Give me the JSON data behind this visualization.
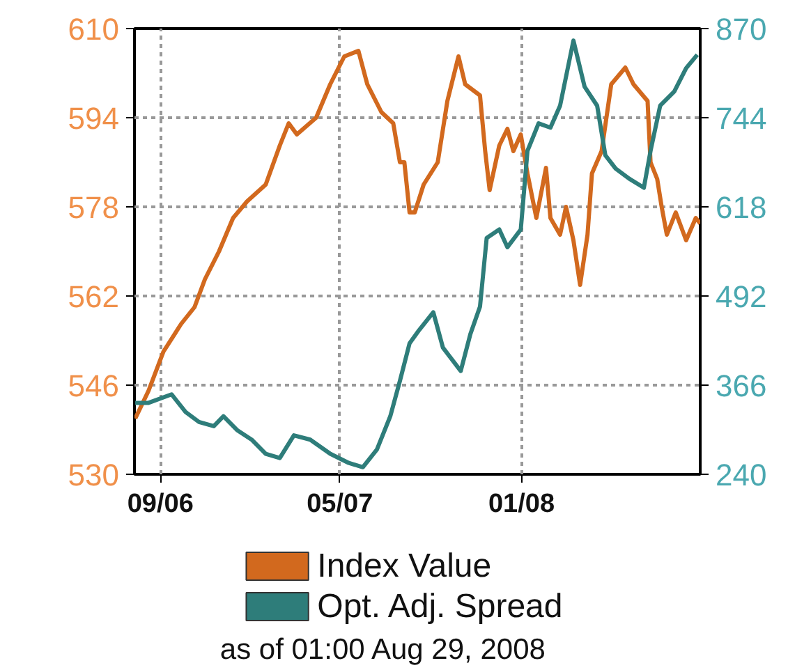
{
  "chart_data": {
    "type": "line",
    "annotations": [
      "as of 01:00 Aug 29, 2008"
    ],
    "xlim": [
      "2006-07-28",
      "2008-08-29"
    ],
    "xticks": [
      {
        "value": "2006-09-01",
        "label": "09/06"
      },
      {
        "value": "2007-05-01",
        "label": "05/07"
      },
      {
        "value": "2008-01-01",
        "label": "01/08"
      }
    ],
    "ylim": [
      530,
      610
    ],
    "yticks": [
      530,
      546,
      562,
      578,
      594,
      610
    ],
    "y2lim": [
      240,
      870
    ],
    "y2ticks": [
      240,
      366,
      492,
      618,
      744,
      870
    ],
    "grid": true,
    "legend": "bottom",
    "line_style": "solid",
    "series": [
      {
        "name": "Index Value",
        "color": "#d2691e",
        "x": [
          "2006-07-29",
          "2006-08-16",
          "2006-09-05",
          "2006-09-29",
          "2006-10-17",
          "2006-10-31",
          "2006-11-19",
          "2006-12-08",
          "2006-12-27",
          "2007-01-21",
          "2007-02-09",
          "2007-02-21",
          "2007-03-04",
          "2007-03-30",
          "2007-04-18",
          "2007-05-07",
          "2007-05-26",
          "2007-06-07",
          "2007-06-26",
          "2007-07-12",
          "2007-07-21",
          "2007-07-27",
          "2007-08-03",
          "2007-08-10",
          "2007-08-22",
          "2007-09-10",
          "2007-09-23",
          "2007-10-08",
          "2007-10-17",
          "2007-11-06",
          "2007-11-13",
          "2007-11-19",
          "2007-12-02",
          "2007-12-13",
          "2007-12-21",
          "2007-12-31",
          "2008-01-09",
          "2008-01-21",
          "2008-02-03",
          "2008-02-09",
          "2008-02-22",
          "2008-03-01",
          "2008-03-11",
          "2008-03-20",
          "2008-03-30",
          "2008-04-05",
          "2008-04-18",
          "2008-05-01",
          "2008-05-20",
          "2008-05-31",
          "2008-06-19",
          "2008-06-23",
          "2008-07-02",
          "2008-07-08",
          "2008-07-15",
          "2008-07-27",
          "2008-08-10",
          "2008-08-23",
          "2008-08-29"
        ],
        "values": [
          540,
          545,
          552,
          557,
          560,
          565,
          570,
          576,
          579,
          582,
          589,
          593,
          591,
          594,
          600,
          605,
          606,
          600,
          595,
          593,
          586,
          586,
          577,
          577,
          582,
          586,
          597,
          605,
          600,
          598,
          588,
          581,
          589,
          592,
          588,
          591,
          584,
          576,
          585,
          576,
          573,
          578,
          572,
          564,
          573,
          584,
          588,
          600,
          603,
          600,
          597,
          586,
          583,
          578,
          573,
          577,
          572,
          576,
          575
        ]
      },
      {
        "name": "Opt. Adj. Spread",
        "color": "#2e7d7a",
        "axis": "y2",
        "x": [
          "2006-07-29",
          "2006-08-16",
          "2006-09-16",
          "2006-10-05",
          "2006-10-23",
          "2006-11-12",
          "2006-11-25",
          "2006-12-14",
          "2007-01-02",
          "2007-01-21",
          "2007-02-09",
          "2007-02-28",
          "2007-03-22",
          "2007-04-18",
          "2007-05-13",
          "2007-06-01",
          "2007-06-20",
          "2007-07-08",
          "2007-07-21",
          "2007-08-03",
          "2007-08-16",
          "2007-09-04",
          "2007-09-17",
          "2007-10-11",
          "2007-10-24",
          "2007-11-06",
          "2007-11-15",
          "2007-12-02",
          "2007-12-13",
          "2007-12-31",
          "2008-01-09",
          "2008-01-24",
          "2008-02-09",
          "2008-02-22",
          "2008-03-11",
          "2008-03-26",
          "2008-04-12",
          "2008-04-23",
          "2008-05-07",
          "2008-05-25",
          "2008-06-14",
          "2008-06-23",
          "2008-07-06",
          "2008-07-25",
          "2008-08-10",
          "2008-08-25"
        ],
        "values": [
          341,
          341,
          353,
          328,
          314,
          308,
          322,
          302,
          289,
          269,
          263,
          295,
          289,
          269,
          256,
          250,
          275,
          322,
          372,
          425,
          444,
          469,
          419,
          386,
          438,
          477,
          574,
          586,
          561,
          586,
          697,
          736,
          730,
          761,
          853,
          788,
          761,
          691,
          672,
          658,
          645,
          697,
          761,
          781,
          814,
          833
        ]
      }
    ]
  }
}
